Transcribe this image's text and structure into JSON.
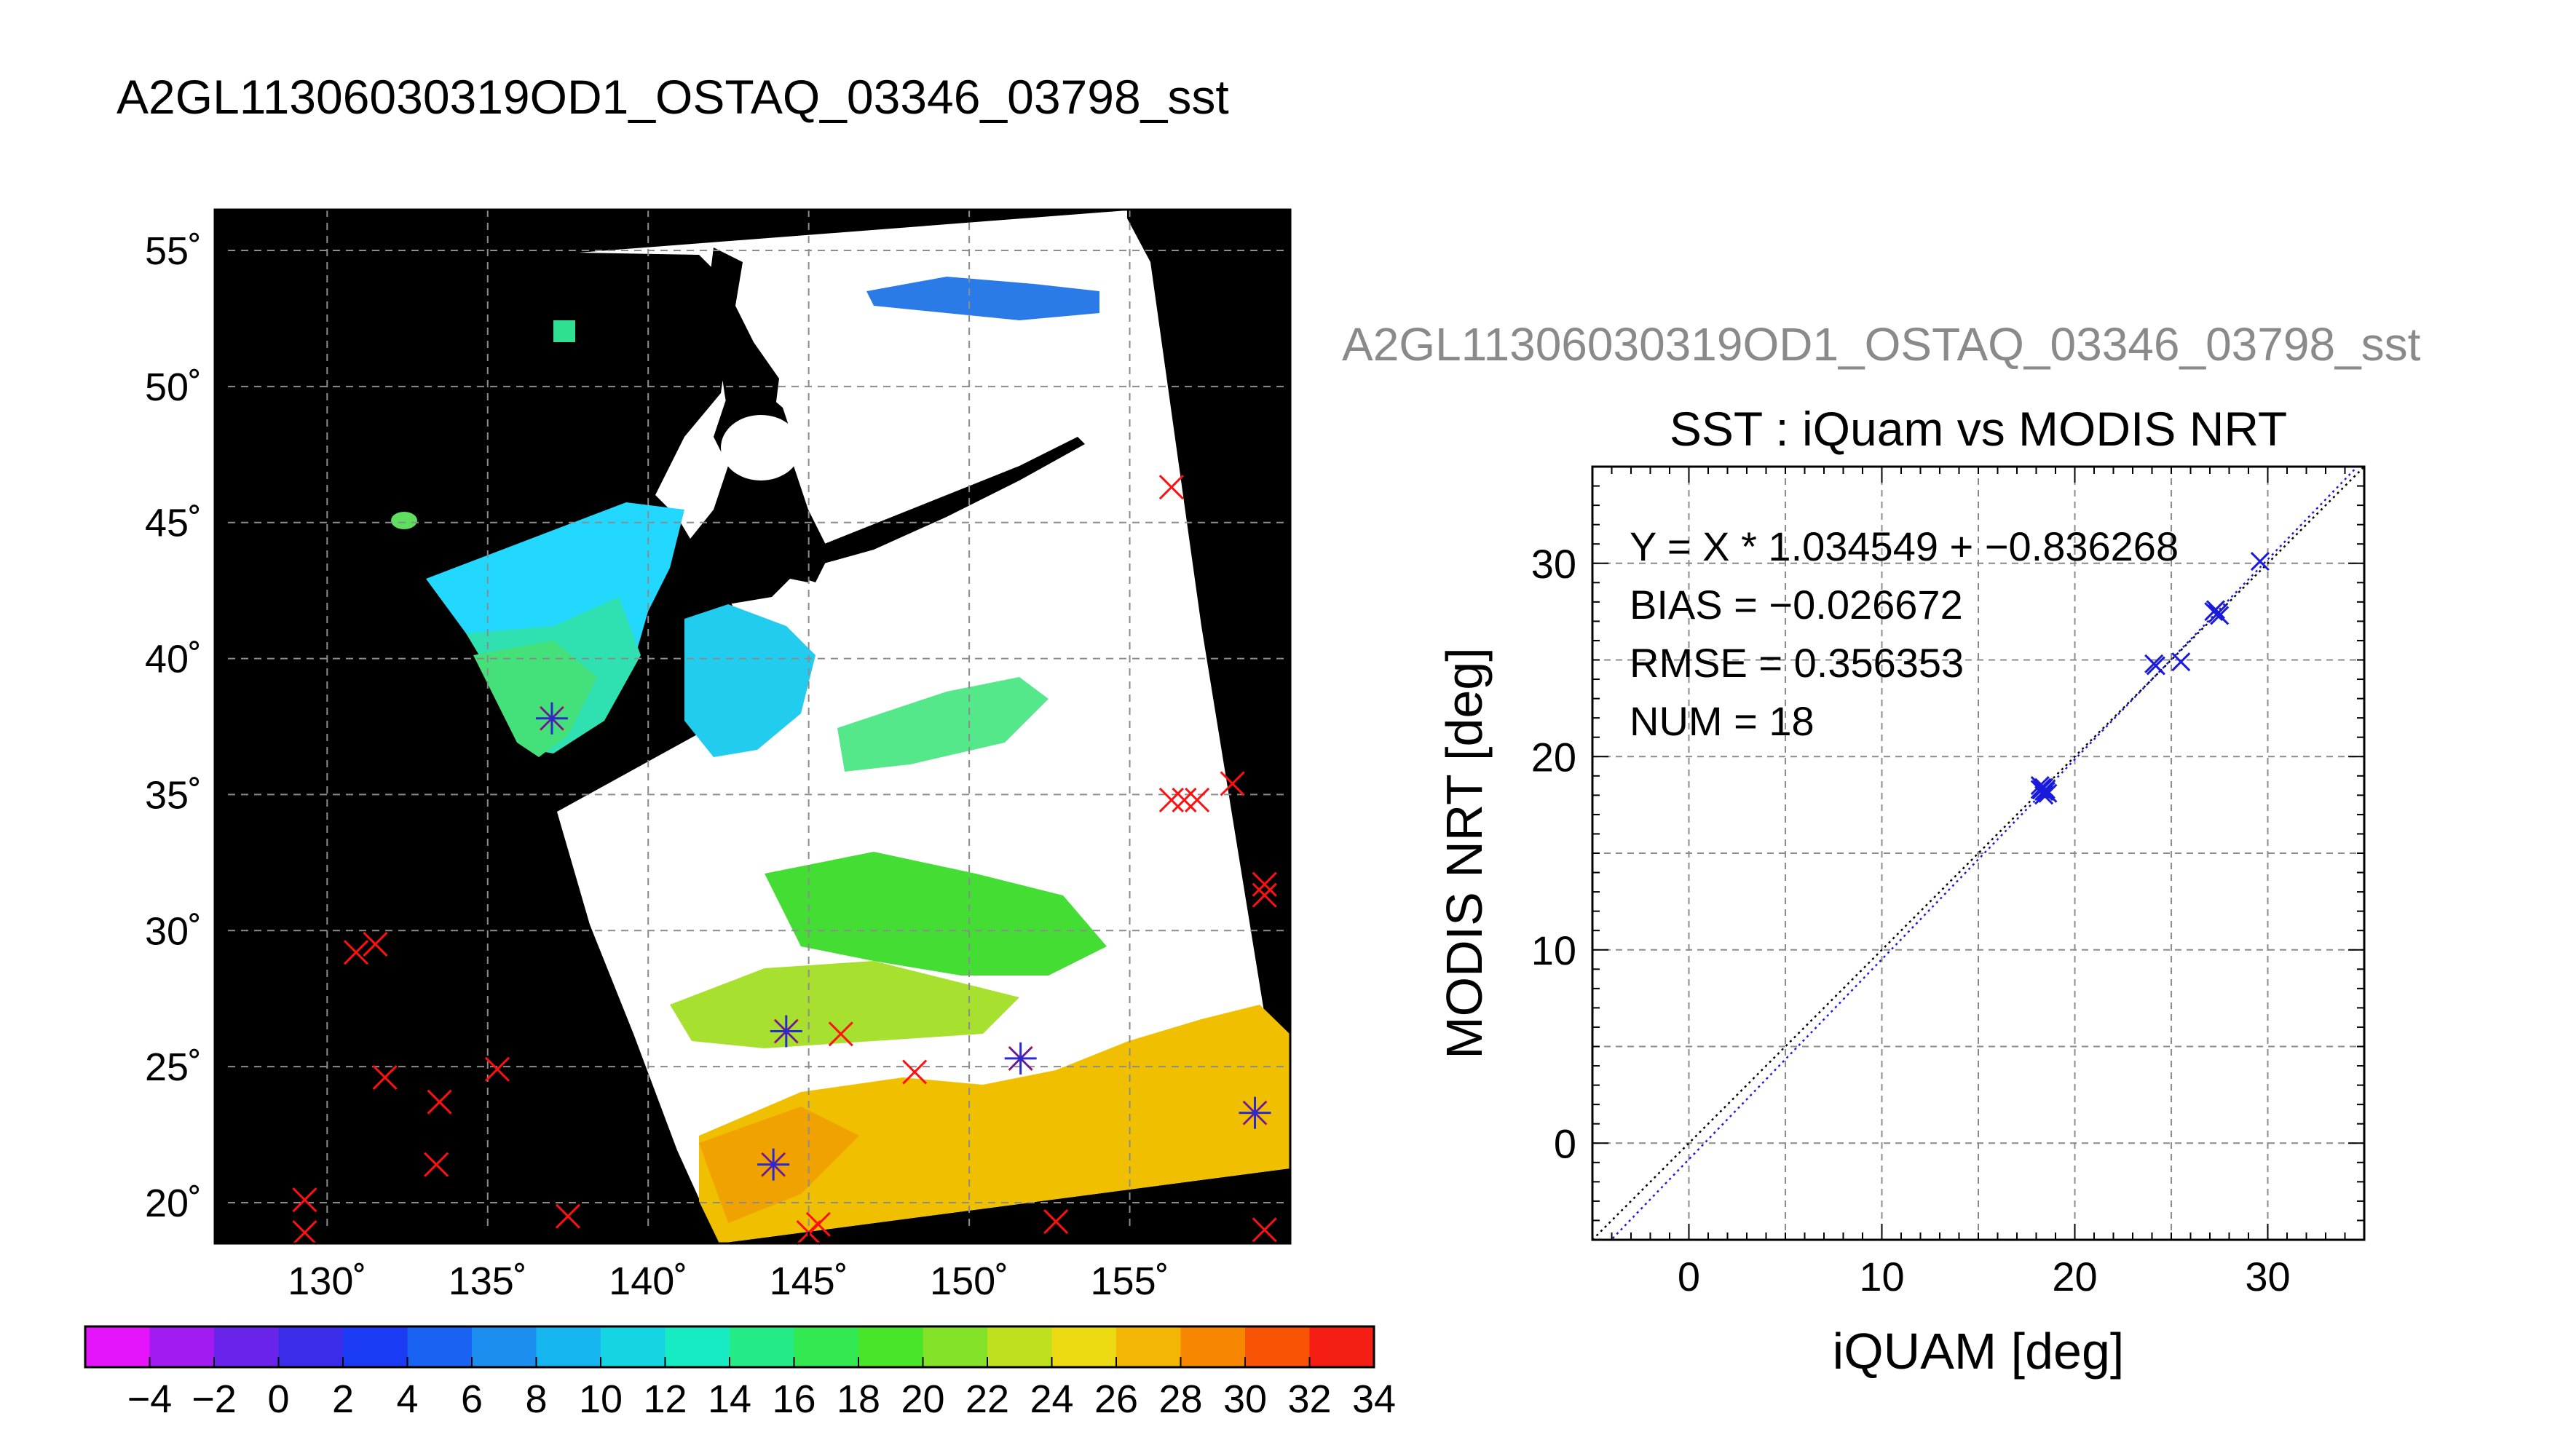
{
  "main_title": "A2GL11306030319OD1_OSTAQ_03346_03798_sst",
  "chart_data": [
    {
      "type": "map",
      "title": "A2GL11306030319OD1_OSTAQ_03346_03798_sst",
      "xlabel": "",
      "ylabel": "",
      "x_range": [
        126.5,
        160
      ],
      "y_range": [
        18.5,
        56.5
      ],
      "x_ticks": [
        130,
        135,
        140,
        145,
        150,
        155
      ],
      "y_ticks": [
        20,
        25,
        30,
        35,
        40,
        45,
        50,
        55
      ],
      "x_tick_labels": [
        "130˚",
        "135˚",
        "140˚",
        "145˚",
        "150˚",
        "155˚"
      ],
      "y_tick_labels": [
        "20˚",
        "25˚",
        "30˚",
        "35˚",
        "40˚",
        "45˚",
        "50˚",
        "55˚"
      ],
      "grid": true,
      "colorbar": {
        "range": [
          -5,
          35
        ],
        "step": 2,
        "tick_labels": [
          "−4",
          "−2",
          "0",
          "2",
          "4",
          "6",
          "8",
          "10",
          "12",
          "14",
          "16",
          "18",
          "20",
          "22",
          "24",
          "26",
          "28",
          "30",
          "32",
          "34"
        ]
      },
      "iquam_points": [
        [
          146.0,
          26.2
        ],
        [
          148.3,
          24.8
        ],
        [
          156.3,
          46.3
        ],
        [
          156.3,
          34.8
        ],
        [
          156.7,
          34.8
        ],
        [
          157.1,
          34.8
        ],
        [
          158.2,
          35.4
        ],
        [
          159.2,
          31.7
        ],
        [
          159.2,
          31.3
        ],
        [
          159.2,
          19.0
        ],
        [
          152.7,
          19.3
        ],
        [
          145.3,
          19.2
        ],
        [
          145.0,
          18.9
        ],
        [
          137.5,
          19.5
        ],
        [
          129.3,
          20.1
        ],
        [
          129.3,
          18.9
        ],
        [
          130.9,
          29.2
        ],
        [
          131.5,
          29.5
        ],
        [
          131.8,
          24.6
        ],
        [
          133.5,
          23.7
        ],
        [
          133.4,
          21.4
        ],
        [
          135.3,
          24.9
        ]
      ],
      "matchup_points": [
        [
          137.0,
          37.8
        ],
        [
          144.3,
          26.3
        ],
        [
          151.6,
          25.3
        ],
        [
          143.9,
          21.4
        ],
        [
          158.9,
          23.3
        ]
      ]
    },
    {
      "type": "scatter",
      "title": "SST : iQuam vs MODIS NRT",
      "top_label": "A2GL11306030319OD1_OSTAQ_03346_03798_sst",
      "xlabel": "iQUAM [deg]",
      "ylabel": "MODIS NRT [deg]",
      "xlim": [
        -5,
        35
      ],
      "ylim": [
        -5,
        35
      ],
      "x_ticks": [
        0,
        10,
        20,
        30
      ],
      "y_ticks": [
        0,
        10,
        20,
        30
      ],
      "grid": true,
      "stats": [
        "Y = X * 1.034549 + −0.836268",
        "BIAS = −0.026672",
        "RMSE = 0.356353",
        "NUM = 18"
      ],
      "fit": {
        "slope": 1.034549,
        "intercept": -0.836268
      },
      "points": [
        [
          18.3,
          18.4
        ],
        [
          18.4,
          18.2
        ],
        [
          18.5,
          18.3
        ],
        [
          18.2,
          18.5
        ],
        [
          18.4,
          18.0
        ],
        [
          18.6,
          18.1
        ],
        [
          18.3,
          18.3
        ],
        [
          18.5,
          18.2
        ],
        [
          18.4,
          18.4
        ],
        [
          24.1,
          24.8
        ],
        [
          25.5,
          24.9
        ],
        [
          27.3,
          27.6
        ],
        [
          27.5,
          27.3
        ],
        [
          27.4,
          27.4
        ],
        [
          27.2,
          27.5
        ],
        [
          29.6,
          30.1
        ],
        [
          24.2,
          24.7
        ],
        [
          18.2,
          18.3
        ]
      ]
    }
  ]
}
